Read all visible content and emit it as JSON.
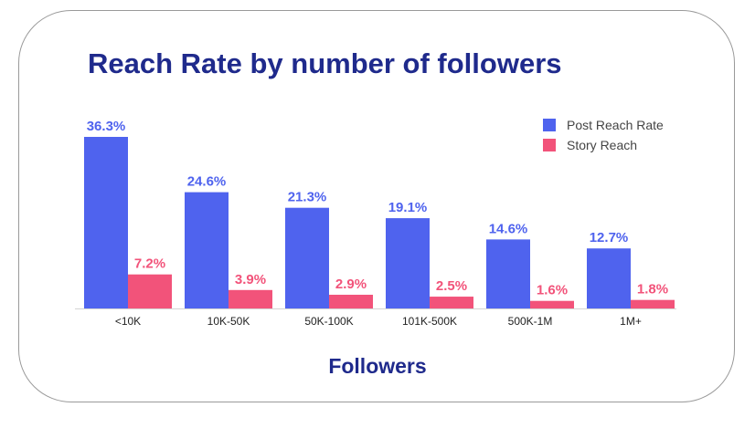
{
  "chart_data": {
    "type": "bar",
    "title": "Reach Rate by number of followers",
    "xlabel": "Followers",
    "ylabel": "",
    "ylim": [
      0,
      36.3
    ],
    "categories": [
      "<10K",
      "10K-50K",
      "50K-100K",
      "101K-500K",
      "500K-1M",
      "1M+"
    ],
    "series": [
      {
        "name": "Post Reach Rate",
        "color": "#4f63ee",
        "label_color": "#4f63ee",
        "values": [
          36.3,
          24.6,
          21.3,
          19.1,
          14.6,
          12.7
        ],
        "labels": [
          "36.3%",
          "24.6%",
          "21.3%",
          "19.1%",
          "14.6%",
          "12.7%"
        ]
      },
      {
        "name": "Story Reach",
        "color": "#f2537a",
        "label_color": "#f2537a",
        "values": [
          7.2,
          3.9,
          2.9,
          2.5,
          1.6,
          1.8
        ],
        "labels": [
          "7.2%",
          "3.9%",
          "2.9%",
          "2.5%",
          "1.6%",
          "1.8%"
        ]
      }
    ],
    "legend_position": "top-right",
    "grid": false
  }
}
